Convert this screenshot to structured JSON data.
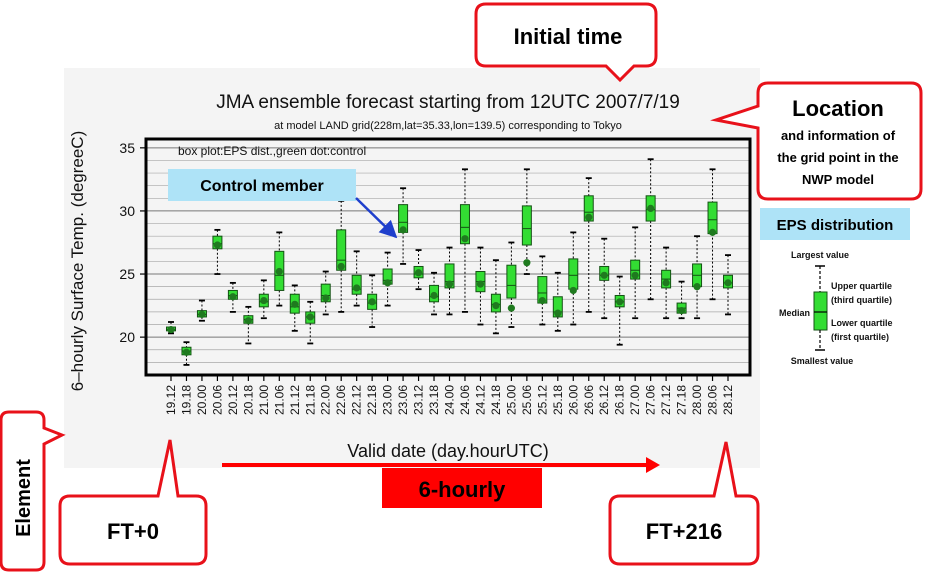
{
  "colors": {
    "box_fill": "#33dd33",
    "box_stroke": "#145214",
    "control_dot": "#1f7a1f",
    "gridline": "#a8a8a8",
    "plot_background": "#f4f4f4",
    "callout_red": "#e8111a",
    "legend_label_bg": "#aee3f7",
    "arrow_blue": "#1f3fcc",
    "banner_red": "#ff0000"
  },
  "chart_data": {
    "type": "box",
    "title": "JMA ensemble forecast starting from 12UTC 2007/7/19",
    "subtitle": "at model LAND grid(228m,lat=35.33,lon=139.5) corresponding to Tokyo",
    "inner_note": "box plot:EPS dist.,green dot:control",
    "xlabel": "Valid date (day.hourUTC)",
    "ylabel": "6–hourly Surface Temp. (degreeC)",
    "ylim": [
      17,
      35.7
    ],
    "yticks": [
      20,
      25,
      30,
      35
    ],
    "grid": "horizontal, every 1 degreeC",
    "categories": [
      "19.12",
      "19.18",
      "20.00",
      "20.06",
      "20.12",
      "20.18",
      "21.00",
      "21.06",
      "21.12",
      "21.18",
      "22.00",
      "22.06",
      "22.12",
      "22.18",
      "23.00",
      "23.06",
      "23.12",
      "23.18",
      "24.00",
      "24.06",
      "24.12",
      "24.18",
      "25.00",
      "25.06",
      "25.12",
      "25.18",
      "26.00",
      "26.06",
      "26.12",
      "26.18",
      "27.00",
      "27.06",
      "27.12",
      "27.18",
      "28.00",
      "28.06",
      "28.12"
    ],
    "series": [
      {
        "min": [
          20.3,
          17.8,
          21.3,
          25.0,
          22.0,
          19.5,
          21.5,
          22.5,
          20.5,
          19.5,
          21.8,
          22.0,
          22.5,
          20.8,
          22.5,
          25.8,
          23.8,
          21.8,
          21.8,
          22.0,
          21.0,
          20.3,
          20.8,
          25.0,
          21.0,
          20.5,
          21.0,
          22.0,
          21.5,
          19.4,
          21.5,
          23.0,
          21.5,
          21.5,
          21.5,
          23.0,
          21.8
        ],
        "q1": [
          20.5,
          18.6,
          21.6,
          27.0,
          23.0,
          21.1,
          22.4,
          23.7,
          21.9,
          21.1,
          22.8,
          25.3,
          23.4,
          22.2,
          24.2,
          28.3,
          24.7,
          22.8,
          23.9,
          27.4,
          23.6,
          22.0,
          23.1,
          27.3,
          22.7,
          21.6,
          23.8,
          29.2,
          24.5,
          22.4,
          24.6,
          29.2,
          23.9,
          21.9,
          24.0,
          28.2,
          23.9
        ],
        "median": [
          20.6,
          18.9,
          21.8,
          27.4,
          23.3,
          21.4,
          22.8,
          24.9,
          22.4,
          21.6,
          23.3,
          26.1,
          23.8,
          22.7,
          24.5,
          29.1,
          25.0,
          23.2,
          24.4,
          28.7,
          24.4,
          22.6,
          24.1,
          28.6,
          23.5,
          22.0,
          24.9,
          29.9,
          24.9,
          22.8,
          25.3,
          30.1,
          24.6,
          22.3,
          24.9,
          29.3,
          24.3
        ],
        "q3": [
          20.8,
          19.2,
          22.1,
          28.0,
          23.7,
          21.7,
          23.4,
          26.8,
          23.4,
          22.0,
          24.2,
          28.5,
          24.9,
          23.4,
          25.4,
          30.5,
          25.6,
          24.1,
          25.8,
          30.5,
          25.2,
          23.4,
          25.7,
          30.4,
          24.8,
          23.2,
          26.2,
          31.2,
          25.6,
          23.3,
          26.1,
          31.2,
          25.3,
          22.7,
          25.8,
          30.7,
          24.9
        ],
        "max": [
          21.2,
          19.6,
          22.9,
          28.5,
          24.3,
          22.4,
          24.5,
          28.3,
          24.1,
          22.8,
          25.2,
          30.8,
          26.8,
          24.9,
          26.7,
          31.8,
          26.9,
          25.1,
          27.1,
          33.3,
          27.1,
          26.1,
          27.5,
          33.3,
          26.4,
          25.1,
          28.3,
          32.6,
          27.8,
          24.8,
          28.7,
          34.1,
          27.1,
          24.4,
          28.0,
          33.3,
          26.5
        ],
        "control": [
          20.6,
          18.8,
          21.8,
          27.3,
          23.2,
          21.3,
          22.9,
          25.2,
          22.6,
          21.6,
          23.1,
          25.6,
          23.9,
          22.8,
          24.3,
          28.5,
          25.1,
          23.3,
          24.2,
          27.8,
          24.2,
          22.5,
          22.3,
          25.9,
          22.9,
          21.9,
          23.7,
          29.5,
          24.9,
          22.8,
          24.9,
          30.2,
          24.3,
          22.1,
          24.0,
          28.3,
          24.3
        ]
      }
    ]
  },
  "callouts": {
    "initial_time": "Initial time",
    "location_title": "Location",
    "location_lines": [
      "and information of",
      "the grid point in the",
      "NWP model"
    ],
    "element": "Element",
    "ft_start": "FT+0",
    "ft_end": "FT+216",
    "hourly_banner": "6-hourly",
    "control_member": "Control member"
  },
  "legend": {
    "title": "EPS distribution",
    "largest": "Largest value",
    "upper_quartile": "Upper quartile",
    "upper_quartile_sub": "(third quartile)",
    "median": "Median",
    "lower_quartile": "Lower quartile",
    "lower_quartile_sub": "(first quartile)",
    "smallest": "Smallest value"
  }
}
